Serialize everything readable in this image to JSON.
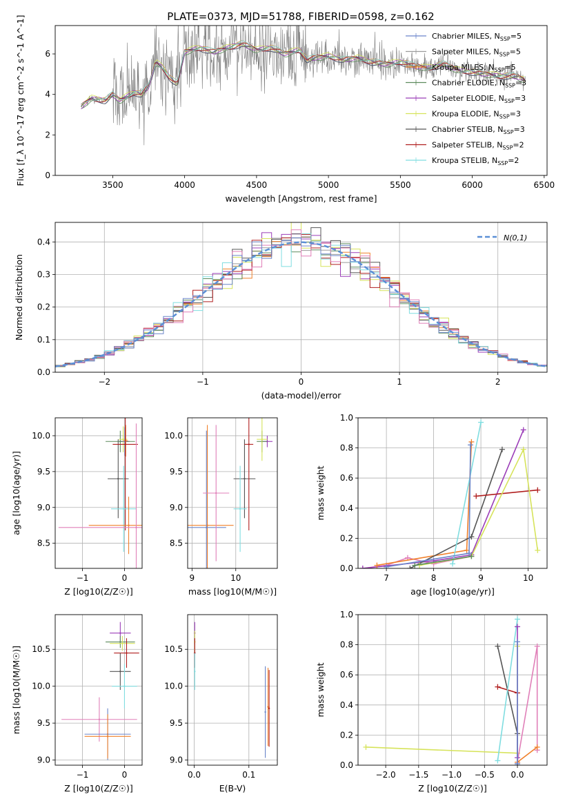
{
  "title": "PLATE=0373, MJD=51788, FIBERID=0598, z=0.162",
  "colors": {
    "Chabrier MILES": "#6a85c9",
    "Salpeter MILES": "#9a9a9a",
    "Kroupa MILES": "#f0802a",
    "Chabrier ELODIE": "#5c8a5c",
    "Salpeter ELODIE": "#9b3db8",
    "Kroupa ELODIE": "#d6e35a",
    "Chabrier STELIB": "#555555",
    "Salpeter STELIB": "#b01e1e",
    "Kroupa STELIB": "#7fdde0",
    "Kroupa STELIB pink": "#e07fb8",
    "gauss": "#5b8fd6"
  },
  "chart_data": [
    {
      "id": "spectrum",
      "type": "line",
      "title": "PLATE=0373, MJD=51788, FIBERID=0598, z=0.162",
      "xlabel": "wavelength [Angstrom, rest frame]",
      "ylabel": "Flux [f_λ 10^-17 erg cm^-2 s^-1 A^-1]",
      "xlim": [
        3100,
        6520
      ],
      "ylim": [
        0,
        7.4
      ],
      "xticks": [
        3500,
        4000,
        4500,
        5000,
        5500,
        6000,
        6500
      ],
      "yticks": [
        0,
        2,
        4,
        6
      ],
      "grid": false,
      "legend": "top-right",
      "legend_entries": [
        {
          "name": "Chabrier MILES",
          "nssp": "5"
        },
        {
          "name": "Salpeter MILES",
          "nssp": "5"
        },
        {
          "name": "Kroupa MILES",
          "nssp": "5"
        },
        {
          "name": "Chabrier ELODIE",
          "nssp": "3"
        },
        {
          "name": "Salpeter ELODIE",
          "nssp": "3"
        },
        {
          "name": "Kroupa ELODIE",
          "nssp": "3"
        },
        {
          "name": "Chabrier STELIB",
          "nssp": "3"
        },
        {
          "name": "Salpeter STELIB",
          "nssp": "2"
        },
        {
          "name": "Kroupa STELIB",
          "nssp": "2"
        }
      ],
      "model_envelope": {
        "x": [
          3280,
          3350,
          3450,
          3500,
          3550,
          3650,
          3700,
          3750,
          3800,
          3850,
          3900,
          3950,
          4000,
          4100,
          4200,
          4300,
          4400,
          4500,
          4600,
          4700,
          4800,
          4850,
          4900,
          5000,
          5100,
          5200,
          5300,
          5400,
          5500,
          5600,
          5700,
          5800,
          5900,
          6000,
          6100,
          6200,
          6300,
          6370
        ],
        "y": [
          3.4,
          3.8,
          3.7,
          4.0,
          3.7,
          4.1,
          4.0,
          4.4,
          5.6,
          5.3,
          4.8,
          4.5,
          6.1,
          6.3,
          6.1,
          6.3,
          6.5,
          6.2,
          6.3,
          6.0,
          6.2,
          5.7,
          5.8,
          5.9,
          5.7,
          5.8,
          5.6,
          5.5,
          5.6,
          5.4,
          5.3,
          5.5,
          5.2,
          5.1,
          5.0,
          4.9,
          4.9,
          4.7
        ]
      }
    },
    {
      "id": "residuals",
      "type": "line",
      "xlabel": "(data-model)/error",
      "ylabel": "Normed distribution",
      "xlim": [
        -2.5,
        2.5
      ],
      "ylim": [
        0,
        0.46
      ],
      "xticks": [
        -2,
        -1,
        0,
        1,
        2
      ],
      "yticks": [
        0.0,
        0.1,
        0.2,
        0.3,
        0.4
      ],
      "grid": true,
      "legend": "top-right",
      "legend_entries": [
        {
          "name": "N(0,1)"
        }
      ],
      "bin_width": 0.1
    },
    {
      "id": "z-age",
      "type": "scatter",
      "xlabel": "Z [log10(Z/Z☉)]",
      "ylabel": "age  [log10(age/yr)]",
      "xlim": [
        -1.65,
        0.42
      ],
      "ylim": [
        8.15,
        10.25
      ],
      "xticks": [
        -1,
        0
      ],
      "yticks": [
        8.5,
        9.0,
        9.5,
        10.0
      ],
      "grid": true,
      "points": [
        {
          "model": "Salpeter ELODIE",
          "x": 0.02,
          "y": 9.92,
          "xerr": 0.1,
          "yerr": 0.1
        },
        {
          "model": "Chabrier ELODIE",
          "x": -0.1,
          "y": 9.92,
          "xerr": 0.35,
          "yerr": 0.15
        },
        {
          "model": "Kroupa ELODIE",
          "x": -0.03,
          "y": 9.95,
          "xerr": 0.1,
          "yerr": 0.18
        },
        {
          "model": "Chabrier MILES",
          "x": 0.01,
          "y": 9.92,
          "xerr": 0.05,
          "yerr": 0.2
        },
        {
          "model": "Kroupa MILES",
          "x": 0.03,
          "y": 9.93,
          "xerr": 0.05,
          "yerr": 0.22
        },
        {
          "model": "Chabrier STELIB",
          "x": -0.15,
          "y": 9.4,
          "xerr": 0.25,
          "yerr": 0.55
        },
        {
          "model": "Salpeter STELIB",
          "x": 0.02,
          "y": 9.88,
          "xerr": 0.3,
          "yerr": 1.2
        },
        {
          "model": "Kroupa STELIB",
          "x": -0.02,
          "y": 8.98,
          "xerr": 0.3,
          "yerr": 0.6
        },
        {
          "model": "Kroupa MILES orange",
          "x": 0.1,
          "y": 8.75,
          "xerr": 0.95,
          "yerr": 0.4
        },
        {
          "model": "Kroupa STELIB pink",
          "x": 0.28,
          "y": 8.72,
          "xerr": 1.85,
          "yerr": 1.45
        }
      ]
    },
    {
      "id": "mass-age",
      "type": "scatter",
      "xlabel": "mass [log10(M/M☉)]",
      "ylabel": "",
      "xlim": [
        8.9,
        10.95
      ],
      "ylim": [
        8.15,
        10.25
      ],
      "xticks": [
        9,
        10
      ],
      "yticks": [
        8.5,
        9.0,
        9.5,
        10.0
      ],
      "grid": true,
      "points": [
        {
          "model": "Salpeter ELODIE",
          "x": 10.72,
          "y": 9.92,
          "xerr": 0.12,
          "yerr": 0.08
        },
        {
          "model": "Chabrier ELODIE",
          "x": 10.6,
          "y": 9.92,
          "xerr": 0.12,
          "yerr": 0.15
        },
        {
          "model": "Kroupa ELODIE",
          "x": 10.6,
          "y": 9.95,
          "xerr": 0.12,
          "yerr": 0.3
        },
        {
          "model": "Chabrier STELIB",
          "x": 10.2,
          "y": 9.4,
          "xerr": 0.25,
          "yerr": 0.55
        },
        {
          "model": "Salpeter STELIB",
          "x": 10.3,
          "y": 9.88,
          "xerr": 0.1,
          "yerr": 1.2
        },
        {
          "model": "Kroupa STELIB",
          "x": 10.1,
          "y": 8.98,
          "xerr": 0.15,
          "yerr": 0.6
        },
        {
          "model": "Kroupa MILES",
          "x": 9.35,
          "y": 8.75,
          "xerr": 0.6,
          "yerr": 1.4
        },
        {
          "model": "Chabrier MILES",
          "x": 9.33,
          "y": 8.72,
          "xerr": 0.45,
          "yerr": 1.35
        },
        {
          "model": "Kroupa STELIB pink",
          "x": 9.55,
          "y": 9.2,
          "xerr": 0.3,
          "yerr": 0.95
        }
      ]
    },
    {
      "id": "age-weight",
      "type": "line",
      "xlabel": "age  [log10(age/yr)]",
      "ylabel": "mass weight",
      "xlim": [
        6.4,
        10.4
      ],
      "ylim": [
        0,
        1.0
      ],
      "xticks": [
        7,
        8,
        9,
        10
      ],
      "yticks": [
        0.0,
        0.2,
        0.4,
        0.6,
        0.8,
        1.0
      ],
      "grid": true,
      "series": [
        {
          "model": "Kroupa STELIB pink",
          "x": [
            6.5,
            7.0,
            7.45,
            8.0,
            8.8
          ],
          "y": [
            0.0,
            0.02,
            0.07,
            0.03,
            0.08
          ]
        },
        {
          "model": "Salpeter ELODIE",
          "x": [
            6.5,
            8.0,
            8.8,
            9.9
          ],
          "y": [
            0.0,
            0.05,
            0.09,
            0.92
          ]
        },
        {
          "model": "Kroupa MILES",
          "x": [
            6.8,
            8.7,
            8.8
          ],
          "y": [
            0.02,
            0.12,
            0.84
          ]
        },
        {
          "model": "Chabrier STELIB",
          "x": [
            7.5,
            8.8,
            9.45
          ],
          "y": [
            0.0,
            0.21,
            0.79
          ]
        },
        {
          "model": "Kroupa STELIB",
          "x": [
            8.4,
            9.0
          ],
          "y": [
            0.03,
            0.97
          ]
        },
        {
          "model": "Salpeter STELIB",
          "x": [
            8.9,
            10.2
          ],
          "y": [
            0.48,
            0.52
          ]
        },
        {
          "model": "Kroupa ELODIE",
          "x": [
            7.7,
            8.8,
            9.9,
            10.2
          ],
          "y": [
            0.02,
            0.08,
            0.79,
            0.12
          ]
        },
        {
          "model": "Chabrier ELODIE",
          "x": [
            7.6,
            8.8
          ],
          "y": [
            0.02,
            0.08
          ]
        },
        {
          "model": "Chabrier MILES",
          "x": [
            7.0,
            8.75,
            8.78
          ],
          "y": [
            0.01,
            0.1,
            0.82
          ]
        }
      ]
    },
    {
      "id": "z-mass",
      "type": "scatter",
      "xlabel": "Z [log10(Z/Z☉)]",
      "ylabel": "mass [log10(M/M☉)]",
      "xlim": [
        -1.65,
        0.42
      ],
      "ylim": [
        8.93,
        10.97
      ],
      "xticks": [
        -1,
        0
      ],
      "yticks": [
        9.0,
        9.5,
        10.0,
        10.5
      ],
      "grid": true,
      "points": [
        {
          "model": "Salpeter ELODIE",
          "x": -0.1,
          "y": 10.72,
          "xerr": 0.25,
          "yerr": 0.15
        },
        {
          "model": "Chabrier ELODIE",
          "x": -0.1,
          "y": 10.6,
          "xerr": 0.35,
          "yerr": 0.08
        },
        {
          "model": "Kroupa ELODIE",
          "x": -0.05,
          "y": 10.58,
          "xerr": 0.3,
          "yerr": 0.1
        },
        {
          "model": "Salpeter STELIB",
          "x": 0.05,
          "y": 10.45,
          "xerr": 0.3,
          "yerr": 0.2
        },
        {
          "model": "Chabrier STELIB",
          "x": -0.1,
          "y": 10.2,
          "xerr": 0.25,
          "yerr": 0.25
        },
        {
          "model": "Kroupa STELIB",
          "x": 0.0,
          "y": 10.0,
          "xerr": 0.3,
          "yerr": 0.3
        },
        {
          "model": "Kroupa STELIB pink",
          "x": -0.6,
          "y": 9.55,
          "xerr": 0.9,
          "yerr": 0.3
        },
        {
          "model": "Chabrier MILES",
          "x": -0.4,
          "y": 9.35,
          "xerr": 0.55,
          "yerr": 0.35
        },
        {
          "model": "Kroupa MILES",
          "x": -0.4,
          "y": 9.32,
          "xerr": 0.55,
          "yerr": 0.3
        }
      ]
    },
    {
      "id": "ebv-mass",
      "type": "scatter",
      "xlabel": "E(B-V)",
      "ylabel": "",
      "xlim": [
        -0.012,
        0.152
      ],
      "ylim": [
        8.93,
        10.97
      ],
      "xticks": [
        0.0,
        0.1
      ],
      "yticks": [
        9.0,
        9.5,
        10.0,
        10.5
      ],
      "grid": true,
      "points": [
        {
          "model": "Salpeter ELODIE",
          "x": 0.001,
          "y": 10.72,
          "xerr": 0.0,
          "yerr": 0.15
        },
        {
          "model": "Kroupa ELODIE",
          "x": 0.001,
          "y": 10.6,
          "xerr": 0.0,
          "yerr": 0.15
        },
        {
          "model": "Salpeter STELIB",
          "x": 0.001,
          "y": 10.45,
          "xerr": 0.0,
          "yerr": 0.2
        },
        {
          "model": "Kroupa STELIB",
          "x": 0.001,
          "y": 10.2,
          "xerr": 0.0,
          "yerr": 0.25
        },
        {
          "model": "Chabrier MILES",
          "x": 0.13,
          "y": 9.65,
          "xerr": 0.0,
          "yerr": 0.62
        },
        {
          "model": "Kroupa MILES",
          "x": 0.135,
          "y": 9.72,
          "xerr": 0.0,
          "yerr": 0.53
        },
        {
          "model": "Salpeter STELIB",
          "x": 0.137,
          "y": 9.7,
          "xerr": 0.0,
          "yerr": 0.52
        }
      ]
    },
    {
      "id": "z-weight",
      "type": "line",
      "xlabel": "Z [log10(Z/Z☉)]",
      "ylabel": "mass weight",
      "xlim": [
        -2.42,
        0.45
      ],
      "ylim": [
        0,
        1.0
      ],
      "xticks": [
        -2.0,
        -1.5,
        -1.0,
        -0.5,
        0.0
      ],
      "yticks": [
        0.0,
        0.2,
        0.4,
        0.6,
        0.8,
        1.0
      ],
      "grid": true,
      "series": [
        {
          "model": "Kroupa ELODIE",
          "x": [
            -2.3,
            0.0,
            0.0
          ],
          "y": [
            0.12,
            0.08,
            0.79
          ]
        },
        {
          "model": "Chabrier STELIB",
          "x": [
            -0.3,
            0.0,
            0.0
          ],
          "y": [
            0.79,
            0.21,
            0.0
          ]
        },
        {
          "model": "Salpeter STELIB",
          "x": [
            -0.3,
            0.0
          ],
          "y": [
            0.52,
            0.48
          ]
        },
        {
          "model": "Kroupa STELIB",
          "x": [
            -0.3,
            0.0
          ],
          "y": [
            0.03,
            0.97
          ]
        },
        {
          "model": "Kroupa STELIB pink",
          "x": [
            0.0,
            0.3,
            0.3
          ],
          "y": [
            0.02,
            0.79,
            0.1
          ]
        },
        {
          "model": "Kroupa MILES",
          "x": [
            0.0,
            0.3
          ],
          "y": [
            0.02,
            0.12
          ]
        },
        {
          "model": "Salpeter ELODIE",
          "x": [
            0.0,
            0.0
          ],
          "y": [
            0.05,
            0.92
          ]
        },
        {
          "model": "Chabrier MILES",
          "x": [
            0.0,
            0.0
          ],
          "y": [
            0.01,
            0.82
          ]
        }
      ]
    }
  ]
}
